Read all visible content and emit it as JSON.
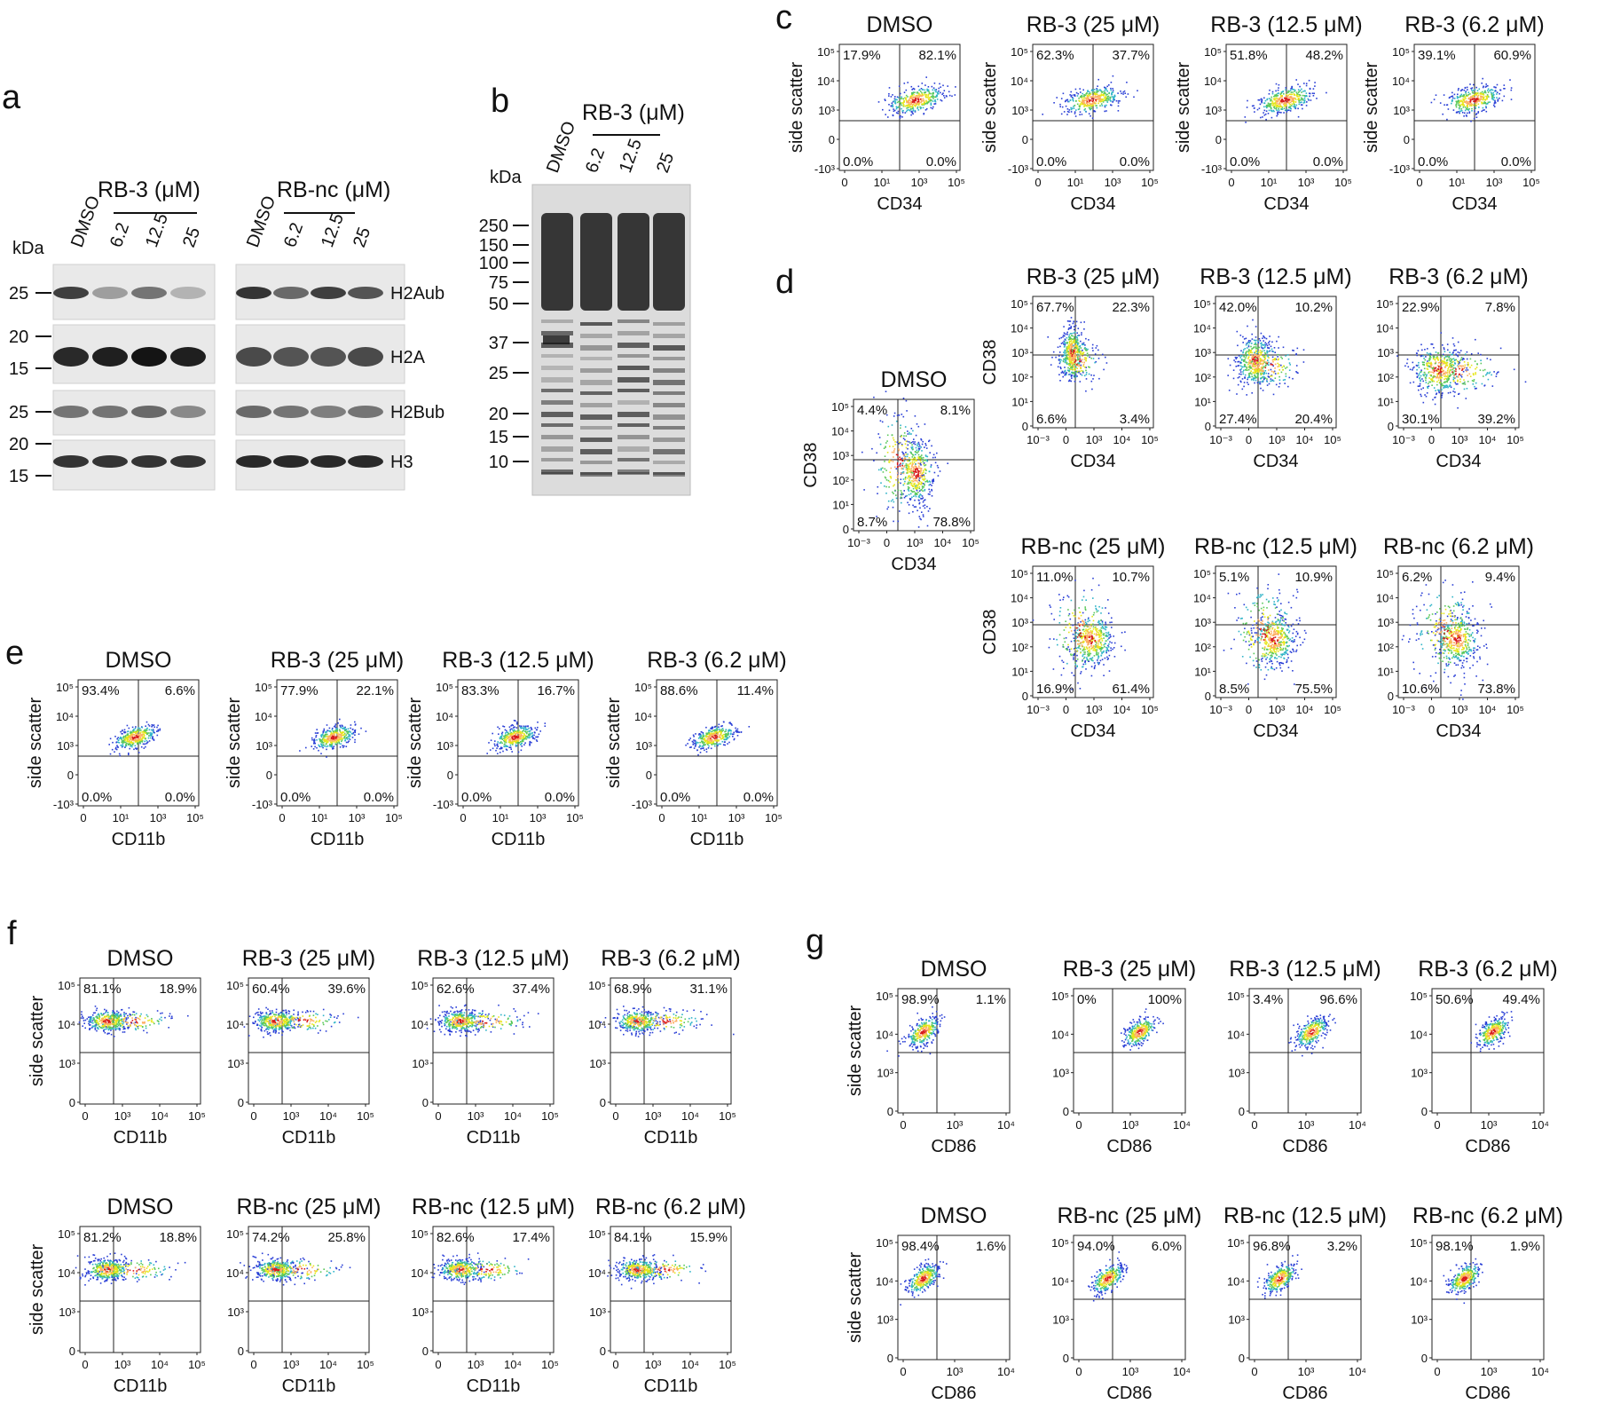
{
  "panels": {
    "a": {
      "letter": "a",
      "kda_label": "kDa",
      "rb3_label": "RB-3 (μM)",
      "rbnc_label": "RB-nc (μM)",
      "lanes": [
        "DMSO",
        "6.2",
        "12.5",
        "25"
      ],
      "proteins": [
        "H2Aub",
        "H2A",
        "H2Bub",
        "H3"
      ],
      "markers": [
        {
          "label": "25",
          "strip": 0
        },
        {
          "label": "20",
          "strip": 1
        },
        {
          "label": "15",
          "strip": 1
        },
        {
          "label": "25",
          "strip": 2
        },
        {
          "label": "20",
          "strip": 3
        },
        {
          "label": "15",
          "strip": 3
        }
      ]
    },
    "b": {
      "letter": "b",
      "kda_label": "kDa",
      "rb3_label": "RB-3 (μM)",
      "lanes": [
        "DMSO",
        "6.2",
        "12.5",
        "25"
      ],
      "markers": [
        "250",
        "150",
        "100",
        "75",
        "50",
        "37",
        "25",
        "20",
        "15",
        "10"
      ]
    },
    "c": {
      "letter": "c",
      "plots": [
        {
          "title": "DMSO",
          "q": [
            "17.9%",
            "82.1%",
            "0.0%",
            "0.0%"
          ]
        },
        {
          "title": "RB-3 (25 μM)",
          "q": [
            "62.3%",
            "37.7%",
            "0.0%",
            "0.0%"
          ]
        },
        {
          "title": "RB-3 (12.5 μM)",
          "q": [
            "51.8%",
            "48.2%",
            "0.0%",
            "0.0%"
          ]
        },
        {
          "title": "RB-3 (6.2 μM)",
          "q": [
            "39.1%",
            "60.9%",
            "0.0%",
            "0.0%"
          ]
        }
      ]
    },
    "d": {
      "letter": "d",
      "plots": [
        {
          "title": "DMSO",
          "q": [
            "4.4%",
            "8.1%",
            "8.7%",
            "78.8%"
          ]
        },
        {
          "title": "RB-3 (25 μM)",
          "q": [
            "67.7%",
            "22.3%",
            "6.6%",
            "3.4%"
          ]
        },
        {
          "title": "RB-3 (12.5 μM)",
          "q": [
            "42.0%",
            "10.2%",
            "27.4%",
            "20.4%"
          ]
        },
        {
          "title": "RB-3 (6.2 μM)",
          "q": [
            "22.9%",
            "7.8%",
            "30.1%",
            "39.2%"
          ]
        },
        {
          "title": "RB-nc (25 μM)",
          "q": [
            "11.0%",
            "10.7%",
            "16.9%",
            "61.4%"
          ]
        },
        {
          "title": "RB-nc (12.5 μM)",
          "q": [
            "5.1%",
            "10.9%",
            "8.5%",
            "75.5%"
          ]
        },
        {
          "title": "RB-nc (6.2 μM)",
          "q": [
            "6.2%",
            "9.4%",
            "10.6%",
            "73.8%"
          ]
        }
      ]
    },
    "e": {
      "letter": "e",
      "plots": [
        {
          "title": "DMSO",
          "q": [
            "93.4%",
            "6.6%",
            "0.0%",
            "0.0%"
          ]
        },
        {
          "title": "RB-3 (25 μM)",
          "q": [
            "77.9%",
            "22.1%",
            "0.0%",
            "0.0%"
          ]
        },
        {
          "title": "RB-3 (12.5 μM)",
          "q": [
            "83.3%",
            "16.7%",
            "0.0%",
            "0.0%"
          ]
        },
        {
          "title": "RB-3 (6.2 μM)",
          "q": [
            "88.6%",
            "11.4%",
            "0.0%",
            "0.0%"
          ]
        }
      ]
    },
    "f": {
      "letter": "f",
      "plots": [
        {
          "title": "DMSO",
          "q": [
            "81.1%",
            "18.9%"
          ]
        },
        {
          "title": "RB-3 (25 μM)",
          "q": [
            "60.4%",
            "39.6%"
          ]
        },
        {
          "title": "RB-3 (12.5 μM)",
          "q": [
            "62.6%",
            "37.4%"
          ]
        },
        {
          "title": "RB-3 (6.2 μM)",
          "q": [
            "68.9%",
            "31.1%"
          ]
        },
        {
          "title": "DMSO",
          "q": [
            "81.2%",
            "18.8%"
          ]
        },
        {
          "title": "RB-nc (25 μM)",
          "q": [
            "74.2%",
            "25.8%"
          ]
        },
        {
          "title": "RB-nc (12.5 μM)",
          "q": [
            "82.6%",
            "17.4%"
          ]
        },
        {
          "title": "RB-nc (6.2 μM)",
          "q": [
            "84.1%",
            "15.9%"
          ]
        }
      ]
    },
    "g": {
      "letter": "g",
      "plots": [
        {
          "title": "DMSO",
          "q": [
            "98.9%",
            "1.1%"
          ]
        },
        {
          "title": "RB-3 (25 μM)",
          "q": [
            "0%",
            "100%"
          ]
        },
        {
          "title": "RB-3 (12.5 μM)",
          "q": [
            "3.4%",
            "96.6%"
          ]
        },
        {
          "title": "RB-3 (6.2 μM)",
          "q": [
            "50.6%",
            "49.4%"
          ]
        },
        {
          "title": "DMSO",
          "q": [
            "98.4%",
            "1.6%"
          ]
        },
        {
          "title": "RB-nc (25 μM)",
          "q": [
            "94.0%",
            "6.0%"
          ]
        },
        {
          "title": "RB-nc (12.5 μM)",
          "q": [
            "96.8%",
            "3.2%"
          ]
        },
        {
          "title": "RB-nc (6.2 μM)",
          "q": [
            "98.1%",
            "1.9%"
          ]
        }
      ]
    }
  },
  "axes": {
    "side_scatter": "side scatter",
    "cd34": "CD34",
    "cd38": "CD38",
    "cd11b": "CD11b",
    "cd86": "CD86"
  },
  "ticks": {
    "ssc_4": [
      "10⁵",
      "10⁴",
      "10³",
      "0",
      "-10³"
    ],
    "ssc_3": [
      "10⁵",
      "10⁴",
      "10³",
      "0"
    ],
    "x_cd34_c": [
      "0",
      "10¹",
      "10³",
      "10⁵"
    ],
    "x_cd11b_e": [
      "0",
      "10¹",
      "10³",
      "10⁵"
    ],
    "cd38_y": [
      "10⁵",
      "10⁴",
      "10³",
      "10²",
      "10¹",
      "0"
    ],
    "cd34_x": [
      "10⁻³",
      "0",
      "10³",
      "10⁴",
      "10⁵"
    ],
    "x_cd11b_f": [
      "0",
      "10³",
      "10⁴",
      "10⁵"
    ],
    "x_cd86_g": [
      "0",
      "10³",
      "10⁴"
    ]
  }
}
